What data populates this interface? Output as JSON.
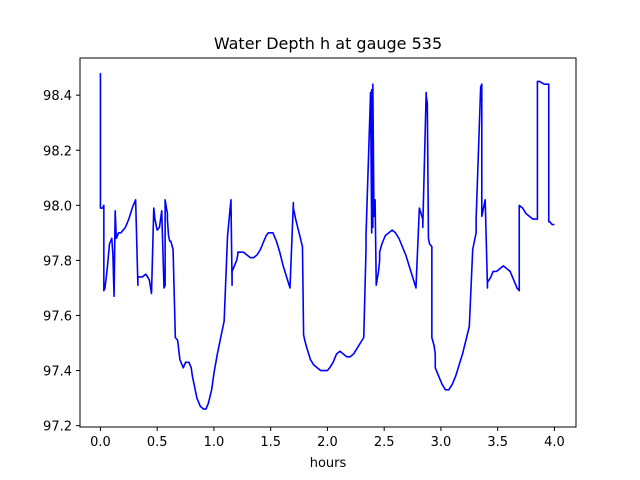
{
  "chart_data": {
    "type": "line",
    "title": "Water Depth h at gauge 535",
    "xlabel": "hours",
    "ylabel": "",
    "xlim": [
      -0.18,
      4.19
    ],
    "ylim": [
      97.195,
      98.535
    ],
    "xticks": [
      0.0,
      0.5,
      1.0,
      1.5,
      2.0,
      2.5,
      3.0,
      3.5,
      4.0
    ],
    "xtick_labels": [
      "0.0",
      "0.5",
      "1.0",
      "1.5",
      "2.0",
      "2.5",
      "3.0",
      "3.5",
      "4.0"
    ],
    "yticks": [
      97.2,
      97.4,
      97.6,
      97.8,
      98.0,
      98.2,
      98.4
    ],
    "ytick_labels": [
      "97.2",
      "97.4",
      "97.6",
      "97.8",
      "98.0",
      "98.2",
      "98.4"
    ],
    "grid": false,
    "series": [
      {
        "color": "#0000ff",
        "x": [
          0.0,
          0.0,
          0.02,
          0.03,
          0.03,
          0.04,
          0.06,
          0.08,
          0.1,
          0.11,
          0.12,
          0.13,
          0.13,
          0.14,
          0.14,
          0.16,
          0.18,
          0.22,
          0.25,
          0.28,
          0.31,
          0.33,
          0.33,
          0.35,
          0.37,
          0.4,
          0.43,
          0.45,
          0.47,
          0.48,
          0.48,
          0.5,
          0.52,
          0.54,
          0.56,
          0.57,
          0.57,
          0.59,
          0.59,
          0.6,
          0.61,
          0.62,
          0.64,
          0.66,
          0.68,
          0.7,
          0.7,
          0.71,
          0.72,
          0.73,
          0.75,
          0.78,
          0.8,
          0.81,
          0.83,
          0.85,
          0.88,
          0.91,
          0.93,
          0.95,
          0.98,
          1.0,
          1.03,
          1.06,
          1.09,
          1.12,
          1.15,
          1.16,
          1.16,
          1.2,
          1.21,
          1.21,
          1.23,
          1.26,
          1.29,
          1.32,
          1.35,
          1.38,
          1.41,
          1.44,
          1.46,
          1.48,
          1.52,
          1.55,
          1.58,
          1.61,
          1.64,
          1.67,
          1.7,
          1.7,
          1.72,
          1.75,
          1.78,
          1.79,
          1.8,
          1.82,
          1.85,
          1.88,
          1.91,
          1.94,
          1.97,
          2.0,
          2.02,
          2.05,
          2.08,
          2.11,
          2.14,
          2.17,
          2.2,
          2.23,
          2.26,
          2.29,
          2.32,
          2.34,
          2.34,
          2.38,
          2.39,
          2.39,
          2.4,
          2.4,
          2.41,
          2.41,
          2.42,
          2.42,
          2.43,
          2.45,
          2.46,
          2.46,
          2.48,
          2.51,
          2.54,
          2.57,
          2.6,
          2.63,
          2.66,
          2.69,
          2.72,
          2.75,
          2.78,
          2.81,
          2.84,
          2.84,
          2.87,
          2.87,
          2.88,
          2.89,
          2.9,
          2.92,
          2.92,
          2.94,
          2.95,
          2.95,
          2.98,
          3.01,
          3.04,
          3.07,
          3.1,
          3.13,
          3.16,
          3.19,
          3.22,
          3.25,
          3.28,
          3.31,
          3.31,
          3.35,
          3.36,
          3.36,
          3.37,
          3.38,
          3.39,
          3.41,
          3.41,
          3.44,
          3.46,
          3.49,
          3.52,
          3.55,
          3.58,
          3.61,
          3.63,
          3.65,
          3.67,
          3.69,
          3.69,
          3.72,
          3.75,
          3.78,
          3.81,
          3.84,
          3.85,
          3.85,
          3.87,
          3.91,
          3.95,
          3.95,
          3.96,
          3.98,
          4.0
        ],
        "y": [
          98.48,
          97.99,
          97.99,
          98.0,
          97.69,
          97.7,
          97.77,
          97.86,
          97.88,
          97.82,
          97.67,
          97.98,
          97.98,
          97.88,
          97.88,
          97.9,
          97.9,
          97.92,
          97.95,
          97.99,
          98.02,
          97.71,
          97.74,
          97.74,
          97.74,
          97.75,
          97.73,
          97.68,
          97.99,
          97.95,
          97.95,
          97.91,
          97.92,
          97.98,
          97.7,
          97.71,
          98.02,
          97.97,
          97.95,
          97.89,
          97.87,
          97.87,
          97.84,
          97.52,
          97.51,
          97.44,
          97.44,
          97.43,
          97.42,
          97.41,
          97.43,
          97.43,
          97.41,
          97.38,
          97.34,
          97.3,
          97.27,
          97.26,
          97.26,
          97.28,
          97.33,
          97.39,
          97.46,
          97.52,
          97.58,
          97.89,
          98.02,
          97.71,
          97.76,
          97.8,
          97.82,
          97.83,
          97.83,
          97.83,
          97.82,
          97.81,
          97.81,
          97.82,
          97.84,
          97.87,
          97.89,
          97.9,
          97.9,
          97.87,
          97.83,
          97.78,
          97.74,
          97.7,
          98.01,
          97.99,
          97.95,
          97.9,
          97.85,
          97.53,
          97.51,
          97.48,
          97.44,
          97.42,
          97.41,
          97.4,
          97.4,
          97.4,
          97.41,
          97.43,
          97.46,
          97.47,
          97.46,
          97.45,
          97.45,
          97.46,
          97.48,
          97.5,
          97.52,
          97.84,
          97.89,
          98.41,
          97.9,
          98.42,
          97.92,
          98.44,
          97.96,
          97.98,
          98.0,
          98.02,
          97.71,
          97.76,
          97.8,
          97.83,
          97.86,
          97.89,
          97.9,
          97.91,
          97.9,
          97.88,
          97.85,
          97.82,
          97.78,
          97.74,
          97.7,
          97.99,
          97.95,
          97.92,
          98.41,
          98.4,
          98.37,
          97.88,
          97.86,
          97.85,
          97.52,
          97.49,
          97.46,
          97.41,
          97.38,
          97.35,
          97.33,
          97.33,
          97.35,
          97.38,
          97.42,
          97.46,
          97.51,
          97.56,
          97.84,
          97.9,
          97.95,
          98.43,
          98.44,
          97.96,
          97.98,
          98.0,
          98.02,
          97.7,
          97.72,
          97.74,
          97.76,
          97.76,
          97.77,
          97.78,
          97.77,
          97.76,
          97.74,
          97.72,
          97.7,
          97.69,
          98.0,
          97.99,
          97.97,
          97.96,
          97.95,
          97.95,
          97.95,
          98.45,
          98.45,
          98.44,
          98.44,
          97.94,
          97.94,
          97.93,
          97.93
        ]
      }
    ]
  }
}
